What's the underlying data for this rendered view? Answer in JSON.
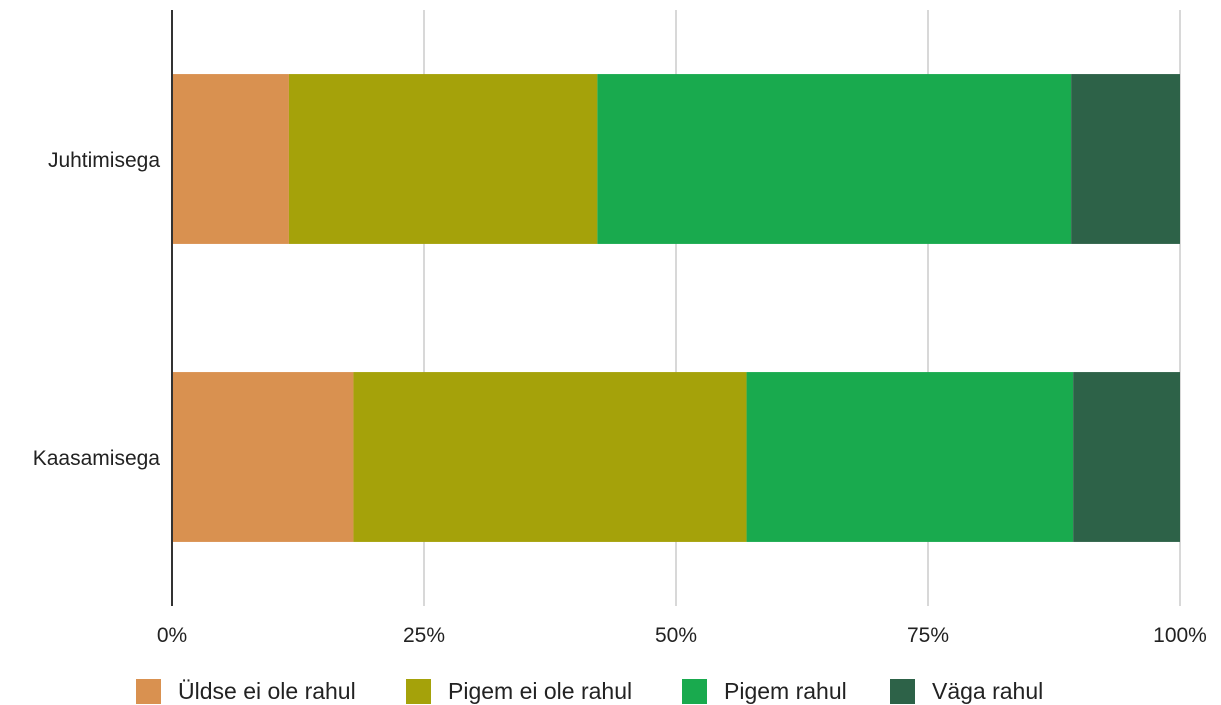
{
  "chart_data": {
    "type": "bar",
    "orientation": "horizontal",
    "stacked": "percent",
    "categories": [
      "Juhtimisega",
      "Kaasamisega"
    ],
    "series": [
      {
        "name": "Üldse ei ole rahul",
        "color": "#D99150",
        "values": [
          11.6,
          18.0
        ]
      },
      {
        "name": "Pigem ei ole rahul",
        "color": "#A5A20A",
        "values": [
          30.6,
          39.0
        ]
      },
      {
        "name": "Pigem rahul",
        "color": "#19AA4E",
        "values": [
          47.0,
          32.4
        ]
      },
      {
        "name": "Väga rahul",
        "color": "#2D6248",
        "values": [
          10.8,
          10.6
        ]
      }
    ],
    "x_ticks": [
      "0%",
      "25%",
      "50%",
      "75%",
      "100%"
    ],
    "xlim": [
      0,
      100
    ],
    "grid": true,
    "legend": "bottom",
    "title": "",
    "xlabel": "",
    "ylabel": ""
  }
}
